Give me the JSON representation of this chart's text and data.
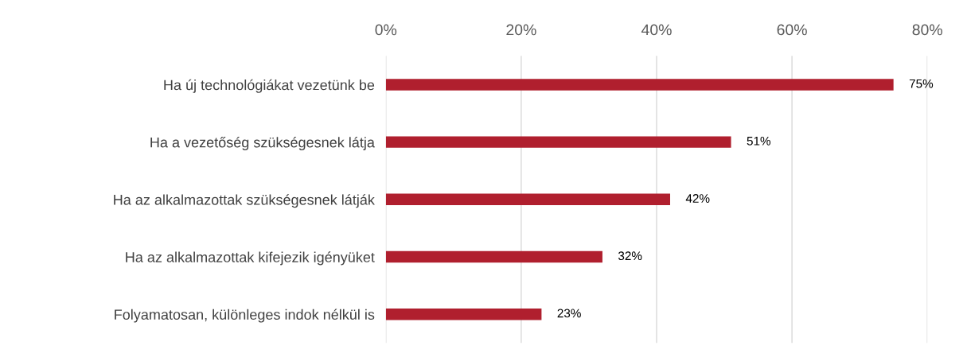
{
  "chart_data": {
    "type": "bar",
    "orientation": "horizontal",
    "categories": [
      "Ha új technológiákat vezetünk be",
      "Ha a vezetőség szükségesnek látja",
      "Ha az alkalmazottak szükségesnek látják",
      "Ha az alkalmazottak kifejezik igényüket",
      "Folyamatosan, különleges indok nélkül is"
    ],
    "values": [
      75,
      51,
      42,
      32,
      23
    ],
    "value_labels": [
      "75%",
      "51%",
      "42%",
      "32%",
      "23%"
    ],
    "color": "#b01f2e",
    "xlim": [
      0,
      80
    ],
    "xticks": [
      {
        "value": 0,
        "label": "0%"
      },
      {
        "value": 20,
        "label": "20%"
      },
      {
        "value": 40,
        "label": "40%"
      },
      {
        "value": 60,
        "label": "60%"
      },
      {
        "value": 80,
        "label": "80%"
      }
    ],
    "grid": "x",
    "legend": false
  }
}
